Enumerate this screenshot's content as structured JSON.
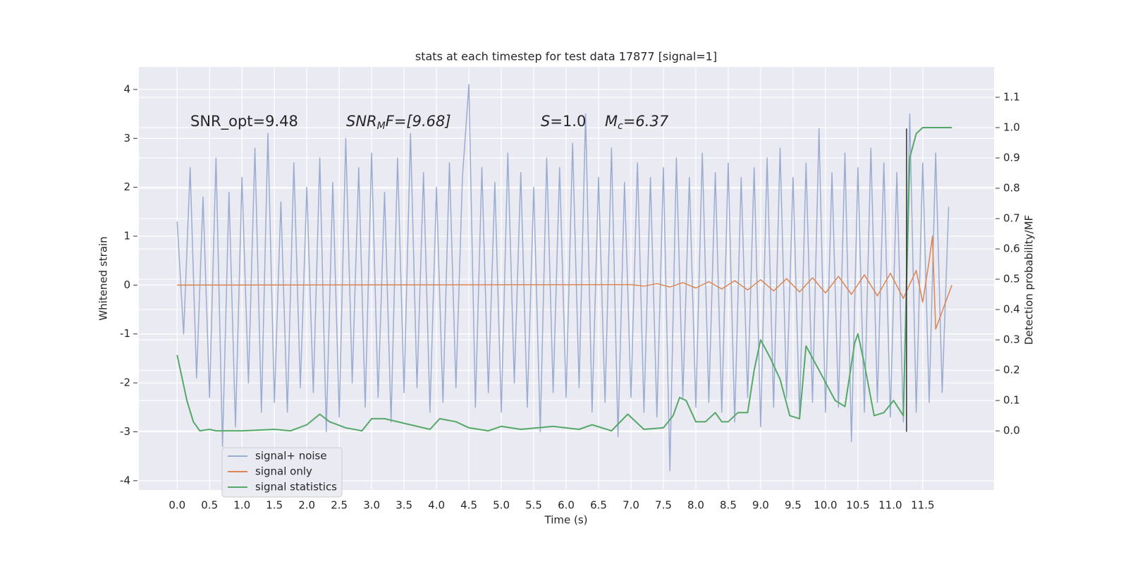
{
  "chart_data": {
    "type": "line",
    "title": "stats at each timestep for test data 17877 [signal=1]",
    "xlabel": "Time (s)",
    "ylabel": "Whitened strain",
    "y2label": "Detection probability/MF",
    "annotations": [
      "SNR_opt=9.48",
      {
        "base": "SNR",
        "sub": "M",
        "tail": "F=[9.68]"
      },
      {
        "base": "S",
        "tail": "=1.0"
      },
      {
        "base": "M",
        "sub": "c",
        "tail": "=6.37"
      }
    ],
    "xlim": [
      -0.59,
      12.6
    ],
    "ylim": [
      -4.19,
      4.46
    ],
    "y2lim": [
      -0.195,
      1.2
    ],
    "xticks": [
      {
        "value": 0,
        "label": "0.0"
      },
      0.5,
      {
        "value": 1,
        "label": "1.0"
      },
      1.5,
      {
        "value": 2,
        "label": "2.0"
      },
      2.5,
      {
        "value": 3,
        "label": "3.0"
      },
      3.5,
      {
        "value": 4,
        "label": "4.0"
      },
      4.5,
      {
        "value": 5,
        "label": "5.0"
      },
      5.5,
      {
        "value": 6,
        "label": "6.0"
      },
      6.5,
      {
        "value": 7,
        "label": "7.0"
      },
      7.5,
      {
        "value": 8,
        "label": "8.0"
      },
      8.5,
      {
        "value": 9,
        "label": "9.0"
      },
      9.5,
      {
        "value": 10,
        "label": "10.0"
      },
      10.5,
      {
        "value": 11,
        "label": "11.0"
      },
      11.5
    ],
    "yticks": [
      -4,
      -3,
      -2,
      -1,
      0,
      1,
      2,
      3,
      4
    ],
    "y2ticks": [
      {
        "value": 0,
        "label": "0.0"
      },
      0.1,
      0.2,
      0.3,
      0.4,
      0.5,
      0.6,
      0.7,
      0.8,
      0.9,
      {
        "value": 1,
        "label": "1.0"
      },
      1.1
    ],
    "grid": true,
    "legend": "lower left",
    "vline": {
      "x": 11.25,
      "ymin": -3,
      "ymax": 3.2,
      "color": "#333333"
    },
    "series": [
      {
        "name": "signal+ noise",
        "color": "#9aadd0",
        "x": [
          0.0,
          0.1,
          0.2,
          0.3,
          0.4,
          0.5,
          0.6,
          0.7,
          0.8,
          0.9,
          1.0,
          1.1,
          1.2,
          1.3,
          1.4,
          1.5,
          1.6,
          1.7,
          1.8,
          1.9,
          2.0,
          2.1,
          2.2,
          2.3,
          2.4,
          2.5,
          2.6,
          2.7,
          2.8,
          2.9,
          3.0,
          3.1,
          3.2,
          3.3,
          3.4,
          3.5,
          3.6,
          3.7,
          3.8,
          3.9,
          4.0,
          4.1,
          4.2,
          4.3,
          4.4,
          4.5,
          4.6,
          4.7,
          4.8,
          4.9,
          5.0,
          5.1,
          5.2,
          5.3,
          5.4,
          5.5,
          5.6,
          5.7,
          5.8,
          5.9,
          6.0,
          6.1,
          6.2,
          6.3,
          6.4,
          6.5,
          6.6,
          6.7,
          6.8,
          6.9,
          7.0,
          7.1,
          7.2,
          7.3,
          7.4,
          7.5,
          7.6,
          7.7,
          7.8,
          7.9,
          8.0,
          8.1,
          8.2,
          8.3,
          8.4,
          8.5,
          8.6,
          8.7,
          8.8,
          8.9,
          9.0,
          9.1,
          9.2,
          9.3,
          9.4,
          9.5,
          9.6,
          9.7,
          9.8,
          9.9,
          10.0,
          10.1,
          10.2,
          10.3,
          10.4,
          10.5,
          10.6,
          10.7,
          10.8,
          10.9,
          11.0,
          11.1,
          11.2,
          11.3,
          11.4,
          11.5,
          11.6,
          11.7,
          11.8,
          11.9
        ],
        "values": [
          1.3,
          -1.0,
          2.4,
          -1.9,
          1.8,
          -2.3,
          2.6,
          -3.3,
          1.9,
          -2.9,
          2.2,
          -2.0,
          2.8,
          -2.6,
          3.1,
          -2.4,
          1.7,
          -2.6,
          2.5,
          -2.1,
          2.0,
          -2.2,
          2.6,
          -3.0,
          2.1,
          -2.7,
          3.0,
          -2.0,
          2.4,
          -2.5,
          2.7,
          -2.3,
          1.9,
          -2.8,
          2.6,
          -2.2,
          3.1,
          -2.1,
          2.3,
          -2.6,
          2.0,
          -2.4,
          2.5,
          -2.1,
          2.2,
          4.1,
          -2.5,
          2.4,
          -2.2,
          2.1,
          -2.6,
          2.7,
          -2.0,
          2.3,
          -2.5,
          2.0,
          -3.0,
          2.6,
          -2.2,
          2.4,
          -2.3,
          2.9,
          -2.1,
          3.5,
          -2.6,
          2.2,
          -2.4,
          2.8,
          -3.1,
          2.1,
          -2.3,
          2.5,
          -2.6,
          2.2,
          -2.7,
          2.4,
          -3.8,
          2.6,
          -2.3,
          2.2,
          -2.5,
          2.7,
          -2.4,
          2.3,
          -2.6,
          2.5,
          -2.8,
          2.2,
          -2.3,
          2.4,
          -2.9,
          2.6,
          -2.5,
          2.8,
          -2.3,
          2.2,
          -2.7,
          2.5,
          -2.4,
          3.2,
          -2.6,
          2.3,
          -2.5,
          2.7,
          -3.2,
          2.4,
          -2.6,
          2.8,
          -2.4,
          2.5,
          -2.7,
          2.3,
          -2.8,
          3.5,
          -2.6,
          2.5,
          -2.4,
          2.7,
          -2.2,
          1.6
        ]
      },
      {
        "name": "signal only",
        "color": "#dd8452",
        "x": [
          0.0,
          7.0,
          7.2,
          7.4,
          7.6,
          7.8,
          8.0,
          8.2,
          8.4,
          8.6,
          8.8,
          9.0,
          9.2,
          9.4,
          9.6,
          9.8,
          10.0,
          10.2,
          10.4,
          10.6,
          10.8,
          11.0,
          11.2,
          11.4,
          11.5,
          11.6,
          11.65,
          11.7,
          11.95
        ],
        "values": [
          0,
          0.01,
          -0.02,
          0.03,
          -0.04,
          0.05,
          -0.06,
          0.07,
          -0.08,
          0.09,
          -0.1,
          0.11,
          -0.12,
          0.13,
          -0.14,
          0.15,
          -0.16,
          0.18,
          -0.19,
          0.21,
          -0.22,
          0.24,
          -0.27,
          0.3,
          -0.35,
          0.5,
          1.0,
          -0.9,
          0
        ]
      },
      {
        "name": "signal statistics",
        "color": "#55a868",
        "axis": "y2",
        "x": [
          0.0,
          0.05,
          0.15,
          0.25,
          0.35,
          0.5,
          0.6,
          1.0,
          1.5,
          1.75,
          2.0,
          2.2,
          2.35,
          2.6,
          2.85,
          3.0,
          3.2,
          3.5,
          3.9,
          4.05,
          4.3,
          4.5,
          4.8,
          5.0,
          5.3,
          5.8,
          6.2,
          6.4,
          6.7,
          6.95,
          7.2,
          7.5,
          7.65,
          7.75,
          7.85,
          8.0,
          8.15,
          8.3,
          8.4,
          8.5,
          8.65,
          8.8,
          8.9,
          9.0,
          9.15,
          9.3,
          9.45,
          9.6,
          9.7,
          9.85,
          10.0,
          10.15,
          10.3,
          10.45,
          10.5,
          10.6,
          10.75,
          10.9,
          11.05,
          11.2,
          11.3,
          11.4,
          11.5,
          11.95
        ],
        "values": [
          0.25,
          0.2,
          0.1,
          0.03,
          0.0,
          0.005,
          0.0,
          0.0,
          0.005,
          0.0,
          0.02,
          0.055,
          0.03,
          0.01,
          0.0,
          0.04,
          0.04,
          0.025,
          0.005,
          0.04,
          0.03,
          0.01,
          0.0,
          0.015,
          0.005,
          0.015,
          0.005,
          0.02,
          0.0,
          0.055,
          0.005,
          0.01,
          0.05,
          0.11,
          0.1,
          0.03,
          0.03,
          0.06,
          0.03,
          0.03,
          0.06,
          0.06,
          0.2,
          0.3,
          0.24,
          0.17,
          0.05,
          0.04,
          0.28,
          0.22,
          0.16,
          0.1,
          0.08,
          0.29,
          0.32,
          0.22,
          0.05,
          0.06,
          0.1,
          0.05,
          0.9,
          0.98,
          1.0,
          1.0
        ]
      }
    ]
  }
}
